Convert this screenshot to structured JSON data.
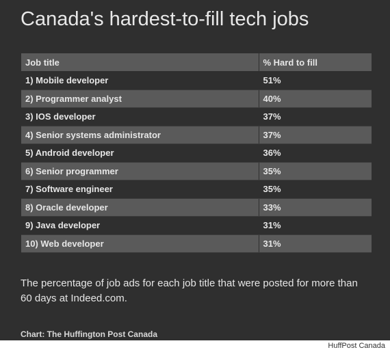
{
  "chart_data": {
    "type": "table",
    "title": "Canada's hardest-to-fill tech jobs",
    "columns": [
      "Job title",
      "% Hard to fill"
    ],
    "rows": [
      [
        "1) Mobile developer",
        "51%"
      ],
      [
        "2) Programmer analyst",
        "40%"
      ],
      [
        "3) IOS developer",
        "37%"
      ],
      [
        "4) Senior systems administrator",
        "37%"
      ],
      [
        "5) Android developer",
        "36%"
      ],
      [
        "6) Senior programmer",
        "35%"
      ],
      [
        "7) Software engineer",
        "35%"
      ],
      [
        "8) Oracle developer",
        "33%"
      ],
      [
        "9) Java developer",
        "31%"
      ],
      [
        "10) Web developer",
        "31%"
      ]
    ],
    "note": "The percentage of job ads for each job title that were posted for more than 60 days at Indeed.com.",
    "credit": "Chart: The Huffington Post Canada"
  },
  "colors": {
    "panel_background": "#2f2f2f",
    "striped_row": "#5a5a5a",
    "text": "#e6e6e6"
  },
  "watermark": "HuffPost Canada"
}
